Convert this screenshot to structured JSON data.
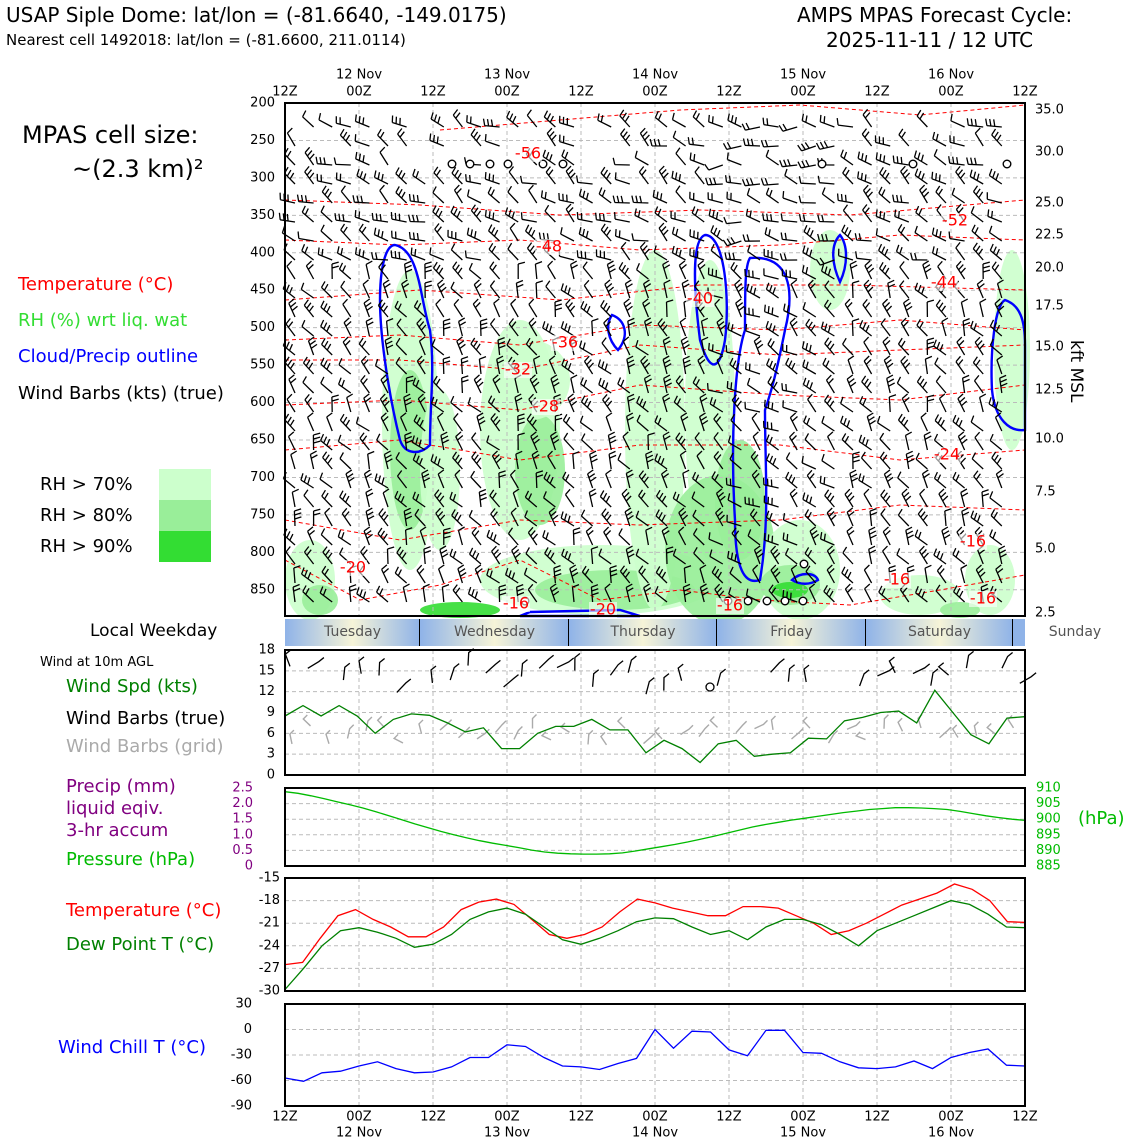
{
  "header": {
    "left_title": "USAP Siple Dome: lat/lon = (-81.6640, -149.0175)",
    "left_subtitle": "Nearest cell 1492018: lat/lon = (-81.6600, 211.0114)",
    "right_title": "AMPS MPAS Forecast Cycle:",
    "right_subtitle": "2025-11-11 / 12 UTC"
  },
  "side": {
    "cell_size_line1": "MPAS cell size:",
    "cell_size_line2": "~(2.3 km)²",
    "legend_temperature": "Temperature (°C)",
    "legend_rh": "RH (%) wrt liq. wat",
    "legend_cloud": "Cloud/Precip outline",
    "legend_barbs": "Wind Barbs (kts) (true)",
    "rh70": "RH > 70%",
    "rh80": "RH > 80%",
    "rh90": "RH > 90%",
    "local_weekday": "Local Weekday",
    "wind10m": "Wind at 10m AGL",
    "wind_spd": "Wind Spd (kts)",
    "wind_barbs_true": "Wind Barbs (true)",
    "wind_barbs_grid": "Wind Barbs (grid)",
    "precip1": "Precip (mm)",
    "precip2": "liquid eqiv.",
    "precip3": "3-hr accum",
    "pressure": "Pressure (hPa)",
    "pressure_unit": "(hPa)",
    "temp_label": "Temperature (°C)",
    "dew_label": "Dew Point T (°C)",
    "windchill_label": "Wind Chill T (°C)",
    "kft_label": "kft MSL"
  },
  "colors": {
    "temperature": "#ff0000",
    "dewpoint": "#008000",
    "rh": "#33cc33",
    "cloud": "#0000ff",
    "precip_axis": "#800080",
    "pressure": "#00bb00",
    "windchill": "#0000ff",
    "grid_barb": "#aaaaaa",
    "rh70": "#ccffcc",
    "rh80": "#99ee99",
    "rh90": "#33dd33",
    "weekday_blue": "#8fb3e8",
    "weekday_yellow": "#f6f4d8"
  },
  "chart_data": [
    {
      "type": "heatmap",
      "name": "time-height cross section",
      "x_ticks_top": [
        "12Z",
        "00Z",
        "12Z",
        "00Z",
        "12Z",
        "00Z",
        "12Z",
        "00Z",
        "12Z",
        "00Z",
        "12Z"
      ],
      "x_dates_top": [
        "12 Nov",
        "13 Nov",
        "14 Nov",
        "15 Nov",
        "16 Nov"
      ],
      "y_pressure_ticks": [
        200,
        250,
        300,
        350,
        400,
        450,
        500,
        550,
        600,
        650,
        700,
        750,
        800,
        850
      ],
      "y_kft_ticks": [
        "35.0",
        "30.0",
        "25.0",
        "22.5",
        "20.0",
        "17.5",
        "15.0",
        "12.5",
        "10.0",
        "7.5",
        "5.0",
        "2.5"
      ],
      "ylim": [
        885,
        200
      ],
      "temperature_labels": [
        "-56",
        "-48",
        "-52",
        "-44",
        "-40",
        "-36",
        "-32",
        "-28",
        "-24",
        "-20",
        "-16",
        "-16",
        "-16",
        "-16",
        "-20",
        "-16"
      ],
      "rh_levels": [
        "RH > 70%",
        "RH > 80%",
        "RH > 90%"
      ]
    },
    {
      "type": "line",
      "name": "wind speed 10m",
      "ylim": [
        0,
        18
      ],
      "y_ticks": [
        0,
        3,
        6,
        9,
        12,
        15,
        18
      ],
      "values": [
        8.5,
        10.0,
        8.5,
        10.0,
        8.5,
        6.0,
        8.0,
        8.8,
        8.6,
        7.5,
        6.2,
        6.8,
        3.8,
        3.8,
        6.0,
        7.0,
        7.0,
        8.0,
        6.5,
        6.5,
        3.2,
        5.0,
        3.8,
        1.8,
        4.5,
        5.0,
        2.7,
        3.0,
        3.2,
        5.3,
        5.2,
        7.8,
        8.3,
        9.0,
        9.2,
        7.5,
        12.2,
        9.0,
        5.8,
        4.5,
        8.2,
        8.4
      ]
    },
    {
      "type": "line",
      "name": "precip and pressure",
      "precip_ylim": [
        0,
        2.5
      ],
      "precip_ticks": [
        "2.5",
        "2.0",
        "1.5",
        "1.0",
        "0.5",
        "0"
      ],
      "pressure_ylim": [
        885,
        910
      ],
      "pressure_ticks": [
        "910",
        "905",
        "900",
        "895",
        "890",
        "885"
      ],
      "pressure_values": [
        908.8,
        908.3,
        907.5,
        906.6,
        905.6,
        904.6,
        903.6,
        902.4,
        901.1,
        899.8,
        898.5,
        897.3,
        896.1,
        895.0,
        894.0,
        893.1,
        892.3,
        891.6,
        890.9,
        890.1,
        889.5,
        889.1,
        888.9,
        888.8,
        888.8,
        888.9,
        889.2,
        889.8,
        890.5,
        891.2,
        891.9,
        892.7,
        893.6,
        894.5,
        895.5,
        896.5,
        897.5,
        898.3,
        899.0,
        899.7,
        900.3,
        900.9,
        901.5,
        902.1,
        902.6,
        903.1,
        903.4,
        903.7,
        903.7,
        903.6,
        903.4,
        903.1,
        902.5,
        901.8,
        901.1,
        900.5,
        900.0,
        899.6
      ]
    },
    {
      "type": "line",
      "name": "temperature and dew point",
      "ylim": [
        -30,
        -15
      ],
      "y_ticks": [
        -15,
        -18,
        -21,
        -24,
        -27,
        -30
      ],
      "series": [
        {
          "name": "Temperature (°C)",
          "values": [
            -26.5,
            -26.2,
            -23.0,
            -20.0,
            -19.2,
            -20.5,
            -21.5,
            -22.8,
            -22.8,
            -21.5,
            -19.2,
            -18.2,
            -17.8,
            -18.5,
            -20.5,
            -22.5,
            -23.0,
            -22.5,
            -21.5,
            -19.5,
            -17.8,
            -18.3,
            -19.0,
            -19.5,
            -20.0,
            -20.0,
            -18.8,
            -18.8,
            -19.0,
            -20.0,
            -21.0,
            -22.5,
            -22.0,
            -21.0,
            -19.8,
            -18.6,
            -17.8,
            -17.0,
            -15.8,
            -16.5,
            -18.0,
            -20.8,
            -20.9
          ]
        },
        {
          "name": "Dew Point T (°C)",
          "values": [
            -29.8,
            -27.0,
            -24.0,
            -22.0,
            -21.6,
            -22.2,
            -23.0,
            -24.2,
            -23.8,
            -22.5,
            -20.5,
            -19.5,
            -19.0,
            -19.8,
            -21.5,
            -23.2,
            -23.8,
            -23.0,
            -22.0,
            -20.8,
            -20.3,
            -20.4,
            -21.5,
            -22.5,
            -22.0,
            -23.2,
            -21.5,
            -20.5,
            -20.5,
            -21.2,
            -22.5,
            -24.0,
            -22.0,
            -21.0,
            -20.0,
            -19.0,
            -18.0,
            -18.5,
            -19.8,
            -21.5,
            -21.6
          ]
        }
      ]
    },
    {
      "type": "line",
      "name": "wind chill",
      "ylim": [
        -90,
        30
      ],
      "y_ticks": [
        30,
        0,
        -30,
        -60,
        -90
      ],
      "values": [
        -57,
        -61,
        -51,
        -49,
        -43,
        -38,
        -46,
        -51,
        -50,
        -44,
        -33,
        -33,
        -18,
        -20,
        -33,
        -43,
        -44,
        -47,
        -40,
        -34,
        0,
        -22,
        -2,
        -3,
        -24,
        -31,
        -1,
        -1,
        -27,
        -28,
        -38,
        -45,
        -46,
        -44,
        -37,
        -46,
        -33,
        -27,
        -23,
        -42,
        -43
      ]
    },
    {
      "type": "table",
      "name": "weekday strip",
      "days": [
        "Tuesday",
        "Wednesday",
        "Thursday",
        "Friday",
        "Saturday",
        "Sunday"
      ]
    }
  ]
}
